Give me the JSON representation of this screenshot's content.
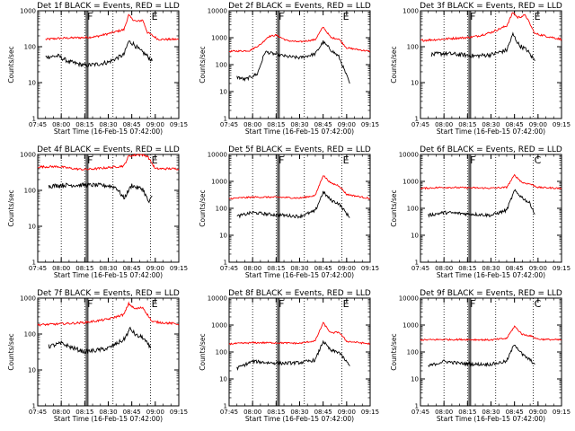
{
  "figure": {
    "window_title": "",
    "background": "#ffffff",
    "axis_color": "#000000"
  },
  "chart_data": [
    {
      "type": "line",
      "title": "Det 1f BLACK = Events, RED = LLD",
      "xlabel": "Start Time (16-Feb-15 07:42:00)",
      "ylabel": "Counts/sec",
      "x_tick_labels": [
        "07:45",
        "08:00",
        "08:15",
        "08:30",
        "08:45",
        "09:00",
        "09:15"
      ],
      "y_tick_labels": [
        "1",
        "10",
        "100",
        "1000"
      ],
      "ylim": [
        1,
        1000
      ],
      "yscale": "log",
      "markers": {
        "dotted": [
          "08:00",
          "08:15",
          "08:33",
          "08:57"
        ],
        "solid": [
          "08:16",
          "08:17"
        ],
        "flags": [
          "F",
          "E"
        ]
      },
      "series": [
        {
          "color": "#ff0000",
          "x": [
            "07:50",
            "07:58",
            "08:05",
            "08:15",
            "08:22",
            "08:30",
            "08:40",
            "08:43",
            "08:45",
            "08:48",
            "08:52",
            "08:55",
            "09:02",
            "09:15"
          ],
          "y": [
            160,
            170,
            175,
            180,
            190,
            230,
            300,
            750,
            600,
            500,
            550,
            250,
            160,
            160
          ]
        },
        {
          "color": "#000000",
          "x": [
            "07:50",
            "07:58",
            "08:05",
            "08:15",
            "08:22",
            "08:30",
            "08:40",
            "08:43",
            "08:46",
            "08:50",
            "08:54",
            "08:58"
          ],
          "y": [
            52,
            55,
            38,
            30,
            32,
            37,
            60,
            140,
            120,
            80,
            60,
            40
          ]
        }
      ]
    },
    {
      "type": "line",
      "title": "Det 2f BLACK = Events, RED = LLD",
      "xlabel": "Start Time (16-Feb-15 07:42:00)",
      "ylabel": "Counts/sec",
      "x_tick_labels": [
        "07:45",
        "08:00",
        "08:15",
        "08:30",
        "08:45",
        "09:00",
        "09:15"
      ],
      "y_tick_labels": [
        "1",
        "10",
        "100",
        "1000",
        "10000"
      ],
      "ylim": [
        1,
        10000
      ],
      "yscale": "log",
      "markers": {
        "dotted": [
          "08:00",
          "08:15",
          "08:33",
          "08:57"
        ],
        "solid": [
          "08:16",
          "08:17"
        ],
        "flags": [
          "F",
          "E"
        ]
      },
      "series": [
        {
          "color": "#ff0000",
          "x": [
            "07:45",
            "07:58",
            "08:05",
            "08:10",
            "08:15",
            "08:22",
            "08:30",
            "08:40",
            "08:45",
            "08:50",
            "08:55",
            "09:00",
            "09:15"
          ],
          "y": [
            310,
            330,
            560,
            1100,
            1250,
            780,
            700,
            850,
            2500,
            1000,
            900,
            420,
            310
          ]
        },
        {
          "color": "#000000",
          "x": [
            "07:50",
            "07:55",
            "08:03",
            "08:08",
            "08:15",
            "08:22",
            "08:30",
            "08:40",
            "08:45",
            "08:50",
            "08:55",
            "09:02"
          ],
          "y": [
            35,
            28,
            45,
            300,
            240,
            200,
            180,
            250,
            700,
            350,
            200,
            20
          ]
        }
      ]
    },
    {
      "type": "line",
      "title": "Det 3f BLACK = Events, RED = LLD",
      "xlabel": "Start Time (16-Feb-15 07:42:00)",
      "ylabel": "Counts/sec",
      "x_tick_labels": [
        "07:45",
        "08:00",
        "08:15",
        "08:30",
        "08:45",
        "09:00",
        "09:15"
      ],
      "y_tick_labels": [
        "1",
        "10",
        "100",
        "1000"
      ],
      "ylim": [
        1,
        1000
      ],
      "yscale": "log",
      "markers": {
        "dotted": [
          "08:00",
          "08:15",
          "08:33",
          "08:57"
        ],
        "solid": [
          "08:16",
          "08:17"
        ],
        "flags": [
          "F",
          "E"
        ]
      },
      "series": [
        {
          "color": "#ff0000",
          "x": [
            "07:45",
            "07:58",
            "08:05",
            "08:15",
            "08:22",
            "08:30",
            "08:40",
            "08:44",
            "08:47",
            "08:52",
            "08:58",
            "09:15"
          ],
          "y": [
            150,
            160,
            170,
            180,
            200,
            250,
            380,
            900,
            650,
            750,
            230,
            160
          ]
        },
        {
          "color": "#000000",
          "x": [
            "07:52",
            "08:00",
            "08:10",
            "08:20",
            "08:30",
            "08:40",
            "08:44",
            "08:48",
            "08:53",
            "08:58"
          ],
          "y": [
            60,
            65,
            60,
            55,
            60,
            80,
            220,
            110,
            80,
            40
          ]
        }
      ]
    },
    {
      "type": "line",
      "title": "Det 4f BLACK = Events, RED = LLD",
      "xlabel": "Start Time (16-Feb-15 07:42:00)",
      "ylabel": "Counts/sec",
      "x_tick_labels": [
        "07:45",
        "08:00",
        "08:15",
        "08:30",
        "08:45",
        "09:00",
        "09:15"
      ],
      "y_tick_labels": [
        "1",
        "10",
        "100",
        "1000"
      ],
      "ylim": [
        1,
        1000
      ],
      "yscale": "log",
      "markers": {
        "dotted": [
          "08:00",
          "08:15",
          "08:33",
          "08:57"
        ],
        "solid": [
          "08:16",
          "08:17"
        ],
        "flags": [
          "F",
          "E"
        ]
      },
      "series": [
        {
          "color": "#ff0000",
          "x": [
            "07:45",
            "07:58",
            "08:08",
            "08:15",
            "08:22",
            "08:30",
            "08:40",
            "08:43",
            "08:50",
            "08:55",
            "09:00",
            "09:15"
          ],
          "y": [
            450,
            460,
            400,
            380,
            400,
            430,
            480,
            900,
            1000,
            900,
            400,
            400
          ]
        },
        {
          "color": "#000000",
          "x": [
            "07:52",
            "08:00",
            "08:10",
            "08:20",
            "08:30",
            "08:35",
            "08:40",
            "08:45",
            "08:48",
            "08:52",
            "08:56",
            "08:58"
          ],
          "y": [
            130,
            140,
            140,
            140,
            135,
            120,
            60,
            140,
            120,
            110,
            45,
            70
          ]
        }
      ]
    },
    {
      "type": "line",
      "title": "Det 5f BLACK = Events, RED = LLD",
      "xlabel": "Start Time (16-Feb-15 07:42:00)",
      "ylabel": "Counts/sec",
      "x_tick_labels": [
        "07:45",
        "08:00",
        "08:15",
        "08:30",
        "08:45",
        "09:00",
        "09:15"
      ],
      "y_tick_labels": [
        "1",
        "10",
        "100",
        "1000",
        "10000"
      ],
      "ylim": [
        1,
        10000
      ],
      "yscale": "log",
      "markers": {
        "dotted": [
          "08:00",
          "08:15",
          "08:33",
          "08:57"
        ],
        "solid": [
          "08:16",
          "08:17"
        ],
        "flags": [
          "F",
          "E"
        ]
      },
      "series": [
        {
          "color": "#ff0000",
          "x": [
            "07:45",
            "08:00",
            "08:15",
            "08:30",
            "08:40",
            "08:45",
            "08:50",
            "08:55",
            "09:00",
            "09:15"
          ],
          "y": [
            230,
            260,
            260,
            240,
            300,
            1700,
            850,
            700,
            330,
            230
          ]
        },
        {
          "color": "#000000",
          "x": [
            "07:50",
            "08:00",
            "08:10",
            "08:20",
            "08:30",
            "08:40",
            "08:45",
            "08:50",
            "08:55",
            "09:02"
          ],
          "y": [
            50,
            70,
            60,
            55,
            50,
            80,
            400,
            200,
            150,
            45
          ]
        }
      ]
    },
    {
      "type": "line",
      "title": "Det 6f BLACK = Events, RED = LLD",
      "xlabel": "Start Time (16-Feb-15 07:42:00)",
      "ylabel": "Counts/sec",
      "x_tick_labels": [
        "07:45",
        "08:00",
        "08:15",
        "08:30",
        "08:45",
        "09:00",
        "09:15"
      ],
      "y_tick_labels": [
        "1",
        "10",
        "100",
        "1000",
        "10000"
      ],
      "ylim": [
        1,
        10000
      ],
      "yscale": "log",
      "markers": {
        "dotted": [
          "08:00",
          "08:15",
          "08:33",
          "08:57"
        ],
        "solid": [
          "08:16",
          "08:17"
        ],
        "flags": [
          "F",
          "C"
        ]
      },
      "series": [
        {
          "color": "#ff0000",
          "x": [
            "07:45",
            "08:00",
            "08:15",
            "08:30",
            "08:40",
            "08:45",
            "08:50",
            "08:55",
            "09:00",
            "09:15"
          ],
          "y": [
            550,
            600,
            580,
            560,
            600,
            1700,
            900,
            800,
            600,
            550
          ]
        },
        {
          "color": "#000000",
          "x": [
            "07:50",
            "08:00",
            "08:10",
            "08:20",
            "08:30",
            "08:40",
            "08:45",
            "08:50",
            "08:55",
            "08:58"
          ],
          "y": [
            55,
            70,
            65,
            60,
            55,
            85,
            450,
            250,
            150,
            60
          ]
        }
      ]
    },
    {
      "type": "line",
      "title": "Det 7f BLACK = Events, RED = LLD",
      "xlabel": "Start Time (16-Feb-15 07:42:00)",
      "ylabel": "Counts/sec",
      "x_tick_labels": [
        "07:45",
        "08:00",
        "08:15",
        "08:30",
        "08:45",
        "09:00",
        "09:15"
      ],
      "y_tick_labels": [
        "1",
        "10",
        "100",
        "1000"
      ],
      "ylim": [
        1,
        1000
      ],
      "yscale": "log",
      "markers": {
        "dotted": [
          "08:00",
          "08:15",
          "08:33",
          "08:57"
        ],
        "solid": [
          "08:16",
          "08:17"
        ],
        "flags": [
          "F",
          "E"
        ]
      },
      "series": [
        {
          "color": "#ff0000",
          "x": [
            "07:45",
            "07:58",
            "08:08",
            "08:15",
            "08:22",
            "08:30",
            "08:40",
            "08:43",
            "08:47",
            "08:52",
            "08:58",
            "09:15"
          ],
          "y": [
            180,
            190,
            200,
            210,
            230,
            260,
            350,
            700,
            500,
            550,
            220,
            190
          ]
        },
        {
          "color": "#000000",
          "x": [
            "07:52",
            "08:00",
            "08:08",
            "08:15",
            "08:22",
            "08:30",
            "08:40",
            "08:44",
            "08:48",
            "08:52",
            "08:57"
          ],
          "y": [
            45,
            55,
            40,
            32,
            35,
            40,
            70,
            140,
            90,
            80,
            40
          ]
        }
      ]
    },
    {
      "type": "line",
      "title": "Det 8f BLACK = Events, RED = LLD",
      "xlabel": "Start Time (16-Feb-15 07:42:00)",
      "ylabel": "Counts/sec",
      "x_tick_labels": [
        "07:45",
        "08:00",
        "08:15",
        "08:30",
        "08:45",
        "09:00",
        "09:15"
      ],
      "y_tick_labels": [
        "1",
        "10",
        "100",
        "1000",
        "10000"
      ],
      "ylim": [
        1,
        10000
      ],
      "yscale": "log",
      "markers": {
        "dotted": [
          "08:00",
          "08:15",
          "08:33",
          "08:57"
        ],
        "solid": [
          "08:16",
          "08:17"
        ],
        "flags": [
          "F",
          "E"
        ]
      },
      "series": [
        {
          "color": "#ff0000",
          "x": [
            "07:45",
            "08:00",
            "08:15",
            "08:30",
            "08:40",
            "08:45",
            "08:50",
            "08:55",
            "09:00",
            "09:15"
          ],
          "y": [
            200,
            220,
            220,
            210,
            260,
            1200,
            500,
            550,
            250,
            200
          ]
        },
        {
          "color": "#000000",
          "x": [
            "07:50",
            "08:00",
            "08:10",
            "08:20",
            "08:30",
            "08:40",
            "08:45",
            "08:50",
            "08:55",
            "09:02"
          ],
          "y": [
            25,
            45,
            40,
            38,
            40,
            50,
            250,
            110,
            100,
            30
          ]
        }
      ]
    },
    {
      "type": "line",
      "title": "Det 9f BLACK = Events, RED = LLD",
      "xlabel": "Start Time (16-Feb-15 07:42:00)",
      "ylabel": "Counts/sec",
      "x_tick_labels": [
        "07:45",
        "08:00",
        "08:15",
        "08:30",
        "08:45",
        "09:00",
        "09:15"
      ],
      "y_tick_labels": [
        "1",
        "10",
        "100",
        "1000",
        "10000"
      ],
      "ylim": [
        1,
        10000
      ],
      "yscale": "log",
      "markers": {
        "dotted": [
          "08:00",
          "08:15",
          "08:33",
          "08:57"
        ],
        "solid": [
          "08:16",
          "08:17"
        ],
        "flags": [
          "F",
          "C"
        ]
      },
      "series": [
        {
          "color": "#ff0000",
          "x": [
            "07:45",
            "08:00",
            "08:15",
            "08:30",
            "08:40",
            "08:45",
            "08:50",
            "08:55",
            "09:00",
            "09:15"
          ],
          "y": [
            280,
            290,
            290,
            280,
            320,
            900,
            450,
            400,
            300,
            280
          ]
        },
        {
          "color": "#000000",
          "x": [
            "07:50",
            "08:00",
            "08:10",
            "08:20",
            "08:30",
            "08:40",
            "08:45",
            "08:50",
            "08:55",
            "08:58"
          ],
          "y": [
            30,
            45,
            38,
            35,
            35,
            45,
            200,
            80,
            50,
            35
          ]
        }
      ]
    }
  ]
}
